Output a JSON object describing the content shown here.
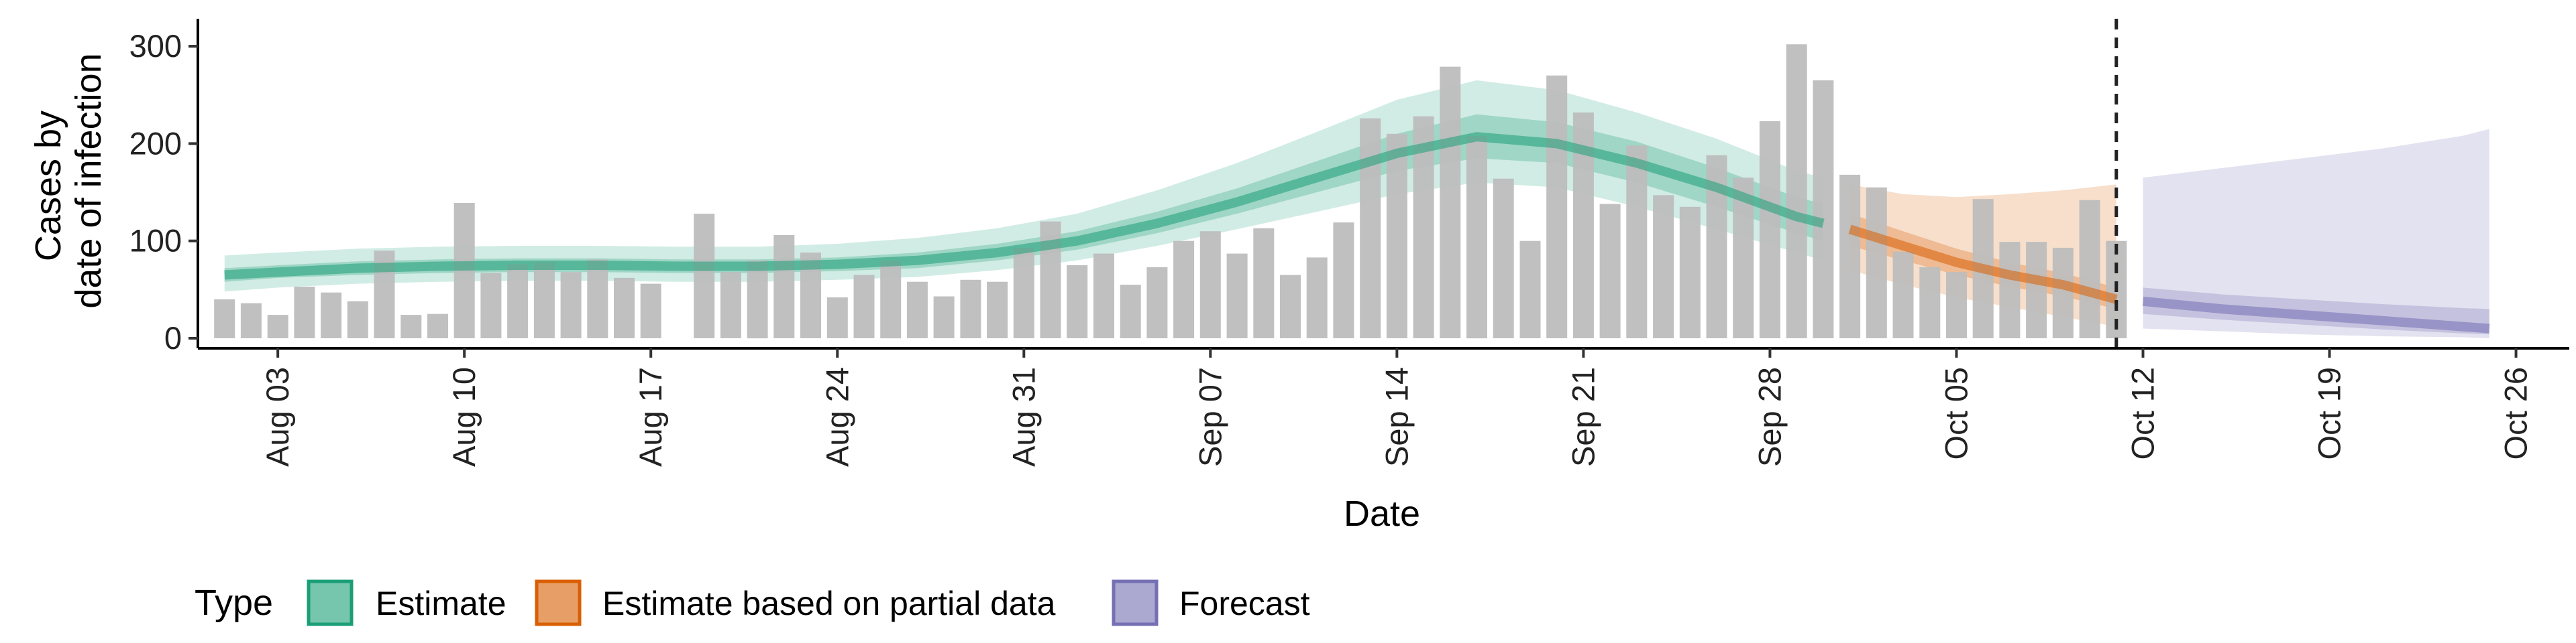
{
  "chart_data": {
    "type": "bar",
    "xlabel": "Date",
    "ylabel_lines": [
      "Cases by",
      "date of infection"
    ],
    "ylim": [
      0,
      320
    ],
    "yticks": [
      0,
      100,
      200,
      300
    ],
    "x_start": "2020-07-31",
    "x_end": "2020-10-28",
    "xticks": [
      {
        "date": "2020-08-03",
        "label": "Aug 03"
      },
      {
        "date": "2020-08-10",
        "label": "Aug 10"
      },
      {
        "date": "2020-08-17",
        "label": "Aug 17"
      },
      {
        "date": "2020-08-24",
        "label": "Aug 24"
      },
      {
        "date": "2020-08-31",
        "label": "Aug 31"
      },
      {
        "date": "2020-09-07",
        "label": "Sep 07"
      },
      {
        "date": "2020-09-14",
        "label": "Sep 14"
      },
      {
        "date": "2020-09-21",
        "label": "Sep 21"
      },
      {
        "date": "2020-09-28",
        "label": "Sep 28"
      },
      {
        "date": "2020-10-05",
        "label": "Oct 05"
      },
      {
        "date": "2020-10-12",
        "label": "Oct 12"
      },
      {
        "date": "2020-10-19",
        "label": "Oct 19"
      },
      {
        "date": "2020-10-26",
        "label": "Oct 26"
      }
    ],
    "vline_date": "2020-10-11",
    "bars": {
      "color": "#bdbdbd",
      "dates": [
        "2020-08-01",
        "2020-08-02",
        "2020-08-03",
        "2020-08-04",
        "2020-08-05",
        "2020-08-06",
        "2020-08-07",
        "2020-08-08",
        "2020-08-09",
        "2020-08-10",
        "2020-08-11",
        "2020-08-12",
        "2020-08-13",
        "2020-08-14",
        "2020-08-15",
        "2020-08-16",
        "2020-08-17",
        "2020-08-18",
        "2020-08-19",
        "2020-08-20",
        "2020-08-21",
        "2020-08-22",
        "2020-08-23",
        "2020-08-24",
        "2020-08-25",
        "2020-08-26",
        "2020-08-27",
        "2020-08-28",
        "2020-08-29",
        "2020-08-30",
        "2020-08-31",
        "2020-09-01",
        "2020-09-02",
        "2020-09-03",
        "2020-09-04",
        "2020-09-05",
        "2020-09-06",
        "2020-09-07",
        "2020-09-08",
        "2020-09-09",
        "2020-09-10",
        "2020-09-11",
        "2020-09-12",
        "2020-09-13",
        "2020-09-14",
        "2020-09-15",
        "2020-09-16",
        "2020-09-17",
        "2020-09-18",
        "2020-09-19",
        "2020-09-20",
        "2020-09-21",
        "2020-09-22",
        "2020-09-23",
        "2020-09-24",
        "2020-09-25",
        "2020-09-26",
        "2020-09-27",
        "2020-09-28",
        "2020-09-29",
        "2020-09-30",
        "2020-10-01",
        "2020-10-02",
        "2020-10-03",
        "2020-10-04",
        "2020-10-05",
        "2020-10-06",
        "2020-10-07",
        "2020-10-08",
        "2020-10-09",
        "2020-10-10",
        "2020-10-11"
      ],
      "values": [
        40,
        36,
        24,
        53,
        47,
        38,
        90,
        24,
        25,
        139,
        67,
        76,
        78,
        68,
        81,
        62,
        56,
        0,
        128,
        68,
        80,
        106,
        88,
        42,
        65,
        80,
        58,
        43,
        60,
        58,
        93,
        120,
        75,
        87,
        55,
        73,
        100,
        110,
        87,
        113,
        65,
        83,
        119,
        226,
        210,
        228,
        279,
        208,
        164,
        100,
        270,
        232,
        138,
        198,
        147,
        135,
        188,
        165,
        223,
        302,
        265,
        168,
        155,
        89,
        73,
        68,
        143,
        99,
        99,
        93,
        142,
        100
      ]
    },
    "series": [
      {
        "name": "Estimate",
        "color": "#1b9e77",
        "dates": [
          "2020-08-01",
          "2020-08-03",
          "2020-08-06",
          "2020-08-09",
          "2020-08-12",
          "2020-08-15",
          "2020-08-18",
          "2020-08-21",
          "2020-08-24",
          "2020-08-27",
          "2020-08-30",
          "2020-09-02",
          "2020-09-05",
          "2020-09-08",
          "2020-09-11",
          "2020-09-14",
          "2020-09-17",
          "2020-09-20",
          "2020-09-23",
          "2020-09-26",
          "2020-09-29",
          "2020-09-30"
        ],
        "median": [
          65,
          68,
          72,
          74,
          75,
          75,
          74,
          74,
          76,
          80,
          88,
          100,
          118,
          140,
          165,
          190,
          207,
          200,
          180,
          155,
          125,
          118
        ],
        "inner_low": [
          58,
          62,
          65,
          67,
          68,
          68,
          67,
          67,
          69,
          72,
          80,
          91,
          108,
          128,
          150,
          172,
          185,
          180,
          160,
          135,
          108,
          100
        ],
        "inner_high": [
          72,
          75,
          79,
          81,
          82,
          82,
          81,
          81,
          83,
          88,
          97,
          110,
          130,
          154,
          182,
          210,
          230,
          222,
          202,
          175,
          145,
          138
        ],
        "outer_low": [
          48,
          52,
          56,
          58,
          59,
          59,
          58,
          58,
          60,
          63,
          70,
          80,
          95,
          112,
          130,
          148,
          160,
          155,
          135,
          112,
          88,
          80
        ],
        "outer_high": [
          85,
          88,
          92,
          94,
          95,
          95,
          94,
          94,
          97,
          103,
          113,
          128,
          152,
          180,
          212,
          245,
          265,
          255,
          232,
          205,
          172,
          165
        ]
      },
      {
        "name": "Estimate based on partial data",
        "color": "#d95f02",
        "dates": [
          "2020-10-01",
          "2020-10-03",
          "2020-10-05",
          "2020-10-07",
          "2020-10-09",
          "2020-10-11"
        ],
        "median": [
          112,
          95,
          78,
          65,
          55,
          40
        ],
        "inner_low": [
          95,
          80,
          65,
          53,
          43,
          30
        ],
        "inner_high": [
          128,
          110,
          92,
          78,
          67,
          52
        ],
        "outer_low": [
          70,
          55,
          42,
          32,
          22,
          12
        ],
        "outer_high": [
          158,
          148,
          145,
          148,
          152,
          158
        ]
      },
      {
        "name": "Forecast",
        "color": "#7570b3",
        "dates": [
          "2020-10-12",
          "2020-10-15",
          "2020-10-18",
          "2020-10-21",
          "2020-10-24",
          "2020-10-25"
        ],
        "median": [
          38,
          30,
          24,
          18,
          12,
          10
        ],
        "inner_low": [
          25,
          19,
          14,
          9,
          5,
          4
        ],
        "inner_high": [
          52,
          45,
          40,
          35,
          31,
          30
        ],
        "outer_low": [
          10,
          7,
          4,
          2,
          1,
          0
        ],
        "outer_high": [
          165,
          175,
          185,
          195,
          208,
          215
        ]
      }
    ],
    "legend": {
      "title": "Type",
      "position": "bottom-left",
      "entries": [
        "Estimate",
        "Estimate based on partial data",
        "Forecast"
      ]
    },
    "grid": false
  }
}
